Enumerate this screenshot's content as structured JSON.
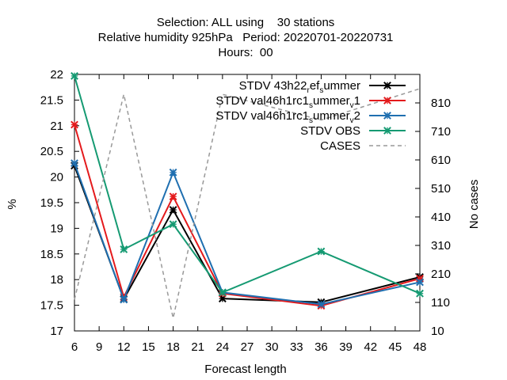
{
  "chart_data": {
    "type": "line",
    "title_lines": [
      "Selection: ALL using    30 stations",
      "Relative humidity 925hPa   Period: 20220701-20220731",
      "Hours:  00"
    ],
    "xlabel": "Forecast length",
    "ylabel": "%",
    "y2label": "No cases",
    "xlim": [
      6,
      48
    ],
    "xticks": [
      6,
      9,
      12,
      15,
      18,
      21,
      24,
      27,
      30,
      33,
      36,
      39,
      42,
      45,
      48
    ],
    "ylim": [
      17,
      22
    ],
    "yticks": [
      "17",
      "17.5",
      "18",
      "18.5",
      "19",
      "19.5",
      "20",
      "20.5",
      "21",
      "21.5",
      "22"
    ],
    "y2lim": [
      10,
      910
    ],
    "y2ticks": [
      10,
      110,
      210,
      310,
      410,
      510,
      610,
      710,
      810
    ],
    "legend_position": "top-right",
    "series": [
      {
        "name_parts": [
          "STDV 43h22",
          "r",
          "ef",
          "s",
          "ummer"
        ],
        "color": "#000000",
        "marker": "x",
        "axis": "y",
        "x": [
          6,
          12,
          18,
          24,
          36,
          48
        ],
        "values": [
          20.22,
          17.62,
          19.36,
          17.63,
          17.56,
          18.05
        ]
      },
      {
        "name_parts": [
          "STDV val46h1rc1",
          "s",
          "ummer",
          "v",
          "1"
        ],
        "color": "#e41a1c",
        "marker": "x",
        "axis": "y",
        "x": [
          6,
          12,
          18,
          24,
          36,
          48
        ],
        "values": [
          21.02,
          17.66,
          19.62,
          17.73,
          17.49,
          18.02
        ]
      },
      {
        "name_parts": [
          "STDV val46h1rc1",
          "s",
          "ummer",
          "v",
          "2"
        ],
        "color": "#1f6fb0",
        "marker": "x",
        "axis": "y",
        "x": [
          6,
          12,
          18,
          24,
          36,
          48
        ],
        "values": [
          20.27,
          17.61,
          20.09,
          17.75,
          17.52,
          17.95
        ]
      },
      {
        "name_parts": [
          "STDV OBS"
        ],
        "color": "#159a72",
        "marker": "x",
        "axis": "y",
        "x": [
          6,
          12,
          18,
          24,
          36,
          48
        ],
        "values": [
          21.97,
          18.59,
          19.08,
          17.75,
          18.55,
          17.73
        ]
      },
      {
        "name_parts": [
          "CASES"
        ],
        "color": "#999999",
        "marker": "none",
        "dashed": true,
        "axis": "y2",
        "x": [
          6,
          12,
          18,
          24,
          36,
          48
        ],
        "values": [
          120,
          840,
          55,
          840,
          750,
          860
        ]
      }
    ]
  }
}
